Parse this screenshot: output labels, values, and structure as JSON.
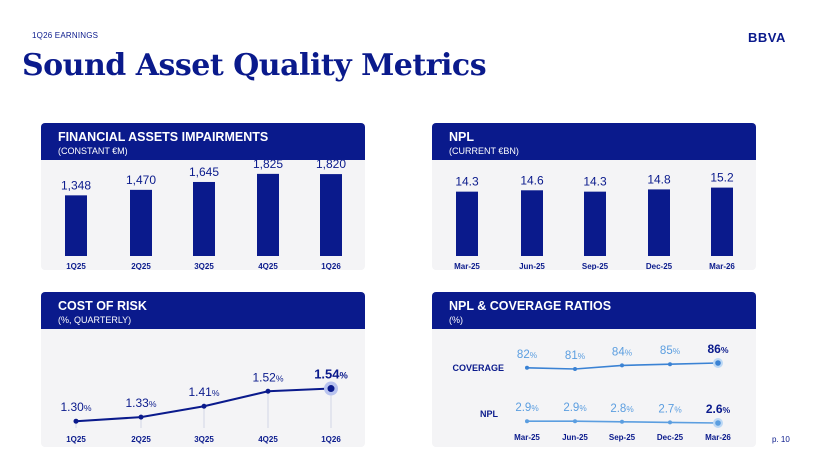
{
  "header": {
    "kicker": "1Q26 EARNINGS",
    "logo": "BBVA",
    "title": "Sound Asset Quality Metrics",
    "page": "p. 10"
  },
  "colors": {
    "navy": "#0a1a8c",
    "light_blue": "#5b9ee0",
    "panel_bg": "#f4f4f6"
  },
  "chart_data": [
    {
      "id": "impairments",
      "type": "bar",
      "title": "FINANCIAL ASSETS IMPAIRMENTS",
      "subtitle": "(CONSTANT €M)",
      "categories": [
        "1Q25",
        "2Q25",
        "3Q25",
        "4Q25",
        "1Q26"
      ],
      "values": [
        1348,
        1470,
        1645,
        1825,
        1820
      ],
      "labels": [
        "1,348",
        "1,470",
        "1,645",
        "1,825",
        "1,820"
      ],
      "ylim": [
        0,
        2000
      ]
    },
    {
      "id": "npl",
      "type": "bar",
      "title": "NPL",
      "subtitle": "(CURRENT €BN)",
      "categories": [
        "Mar-25",
        "Jun-25",
        "Sep-25",
        "Dec-25",
        "Mar-26"
      ],
      "values": [
        14.3,
        14.6,
        14.3,
        14.8,
        15.2
      ],
      "labels": [
        "14.3",
        "14.6",
        "14.3",
        "14.8",
        "15.2"
      ],
      "ylim": [
        0,
        20
      ]
    },
    {
      "id": "cor",
      "type": "line",
      "title": "COST OF RISK",
      "subtitle": "(%, QUARTERLY)",
      "categories": [
        "1Q25",
        "2Q25",
        "3Q25",
        "4Q25",
        "1Q26"
      ],
      "values": [
        1.3,
        1.33,
        1.41,
        1.52,
        1.54
      ],
      "labels": [
        "1.30",
        "1.33",
        "1.41",
        "1.52",
        "1.54"
      ],
      "unit": "%",
      "ylim": [
        1.0,
        1.6
      ]
    },
    {
      "id": "ratios",
      "type": "line",
      "title": "NPL & COVERAGE RATIOS",
      "subtitle": "(%)",
      "categories": [
        "Mar-25",
        "Jun-25",
        "Sep-25",
        "Dec-25",
        "Mar-26"
      ],
      "unit": "%",
      "series": [
        {
          "name": "COVERAGE",
          "values": [
            82,
            81,
            84,
            85,
            86
          ],
          "labels": [
            "82",
            "81",
            "84",
            "85",
            "86"
          ]
        },
        {
          "name": "NPL",
          "values": [
            2.9,
            2.9,
            2.8,
            2.7,
            2.6
          ],
          "labels": [
            "2.9",
            "2.9",
            "2.8",
            "2.7",
            "2.6"
          ]
        }
      ]
    }
  ]
}
